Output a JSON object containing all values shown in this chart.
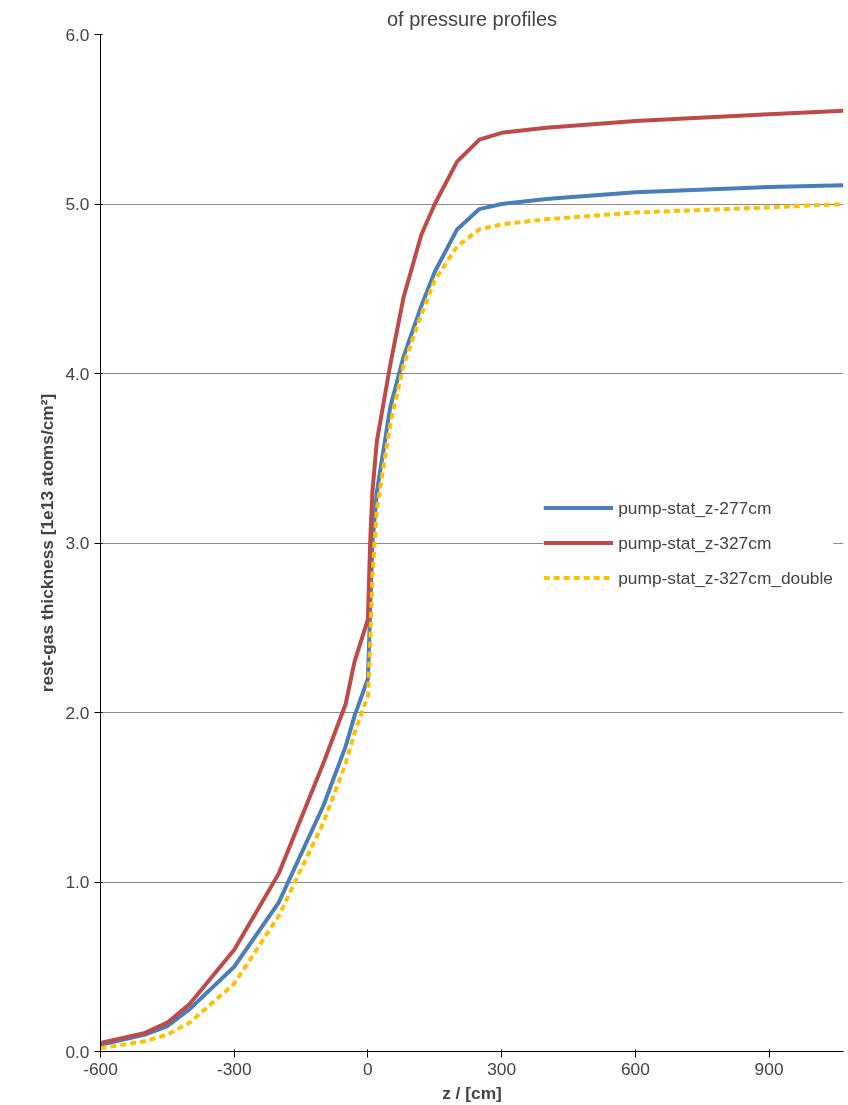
{
  "chart_data": {
    "type": "line",
    "title": "of pressure profiles",
    "xlabel": "z / [cm]",
    "ylabel": "rest-gas thickness [1e13 atoms/cm²]",
    "x": [
      -600,
      -500,
      -450,
      -400,
      -300,
      -200,
      -100,
      -50,
      -30,
      0,
      5,
      10,
      20,
      50,
      80,
      120,
      150,
      200,
      250,
      300,
      400,
      600,
      900,
      1067
    ],
    "xlim": [
      -600,
      1067
    ],
    "xticks": [
      -600,
      -300,
      0,
      300,
      600,
      900
    ],
    "ylim": [
      0,
      6
    ],
    "yticks": [
      {
        "value": 0,
        "label": "0.0"
      },
      {
        "value": 1,
        "label": "1.0"
      },
      {
        "value": 2,
        "label": "2.0"
      },
      {
        "value": 3,
        "label": "3.0"
      },
      {
        "value": 4,
        "label": "4.0"
      },
      {
        "value": 5,
        "label": "5.0"
      },
      {
        "value": 6,
        "label": "6.0"
      }
    ],
    "grid": "y",
    "legend": "right",
    "series": [
      {
        "name": "pump-stat_z-277cm",
        "color": "#4a7ebb",
        "line_style": "solid",
        "values": [
          0.04,
          0.1,
          0.15,
          0.25,
          0.5,
          0.88,
          1.45,
          1.8,
          1.98,
          2.2,
          2.6,
          3.0,
          3.3,
          3.8,
          4.1,
          4.4,
          4.6,
          4.85,
          4.97,
          5.0,
          5.03,
          5.07,
          5.1,
          5.11
        ]
      },
      {
        "name": "pump-stat_z-327cm",
        "color": "#be4b48",
        "line_style": "solid",
        "values": [
          0.05,
          0.11,
          0.17,
          0.28,
          0.6,
          1.05,
          1.7,
          2.05,
          2.3,
          2.55,
          3.0,
          3.3,
          3.6,
          4.05,
          4.45,
          4.82,
          5.0,
          5.25,
          5.38,
          5.42,
          5.45,
          5.49,
          5.53,
          5.55
        ]
      },
      {
        "name": "pump-stat_z-327cm_double",
        "color": "#ffc000",
        "line_style": "dashed",
        "values": [
          0.02,
          0.06,
          0.1,
          0.17,
          0.4,
          0.8,
          1.35,
          1.7,
          1.88,
          2.1,
          2.4,
          2.8,
          3.2,
          3.7,
          4.05,
          4.35,
          4.55,
          4.75,
          4.85,
          4.88,
          4.91,
          4.95,
          4.98,
          5.0
        ]
      }
    ]
  }
}
